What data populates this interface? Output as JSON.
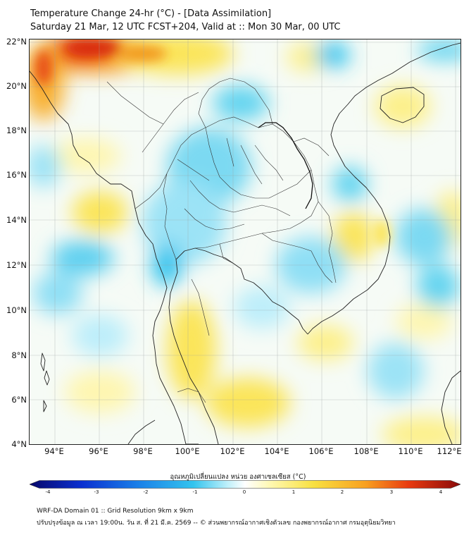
{
  "header": {
    "title_line1": "Temperature Change 24-hr (°C) - [Data Assimilation]",
    "title_line2": "Saturday 21 Mar, 12 UTC FCST+204, Valid at :: Mon 30 Mar, 00 UTC"
  },
  "map": {
    "lat_labels": [
      "22°N",
      "20°N",
      "18°N",
      "16°N",
      "14°N",
      "12°N",
      "10°N",
      "8°N",
      "6°N",
      "4°N"
    ],
    "lon_labels": [
      "94°E",
      "96°E",
      "98°E",
      "100°E",
      "102°E",
      "104°E",
      "106°E",
      "108°E",
      "110°E",
      "112°E"
    ],
    "lat_values": [
      22,
      20,
      18,
      16,
      14,
      12,
      10,
      8,
      6,
      4
    ],
    "lon_values": [
      94,
      96,
      98,
      100,
      102,
      104,
      106,
      108,
      110,
      112
    ],
    "extent": {
      "lon_min": 93,
      "lon_max": 112.3,
      "lat_min": 4,
      "lat_max": 22.2
    }
  },
  "colorbar": {
    "title": "อุณหภูมิเปลี่ยนแปลง หน่วย องศาเซลเซียส (°C)",
    "ticks": [
      "-4",
      "-3",
      "-2",
      "-1",
      "0",
      "1",
      "2",
      "3",
      "4"
    ],
    "min": -4,
    "max": 4,
    "colors": [
      "#08086b",
      "#0a2fd0",
      "#1a7fe8",
      "#33c4ee",
      "#bff0fa",
      "#ffffff",
      "#fff8b0",
      "#f8e040",
      "#f8a020",
      "#e83a10",
      "#8a0a0a"
    ]
  },
  "footer": {
    "line1": "WRF-DA Domain 01 :: Grid Resolution 9km x 9km",
    "line2": "ปรับปรุงข้อมูล ณ เวลา 19:00น. วัน ส. ที่ 21 มี.ค. 2569 -- © ส่วนพยากรณ์อากาศเชิงตัวเลข กองพยากรณ์อากาศ กรมอุตุนิยมวิทยา"
  }
}
